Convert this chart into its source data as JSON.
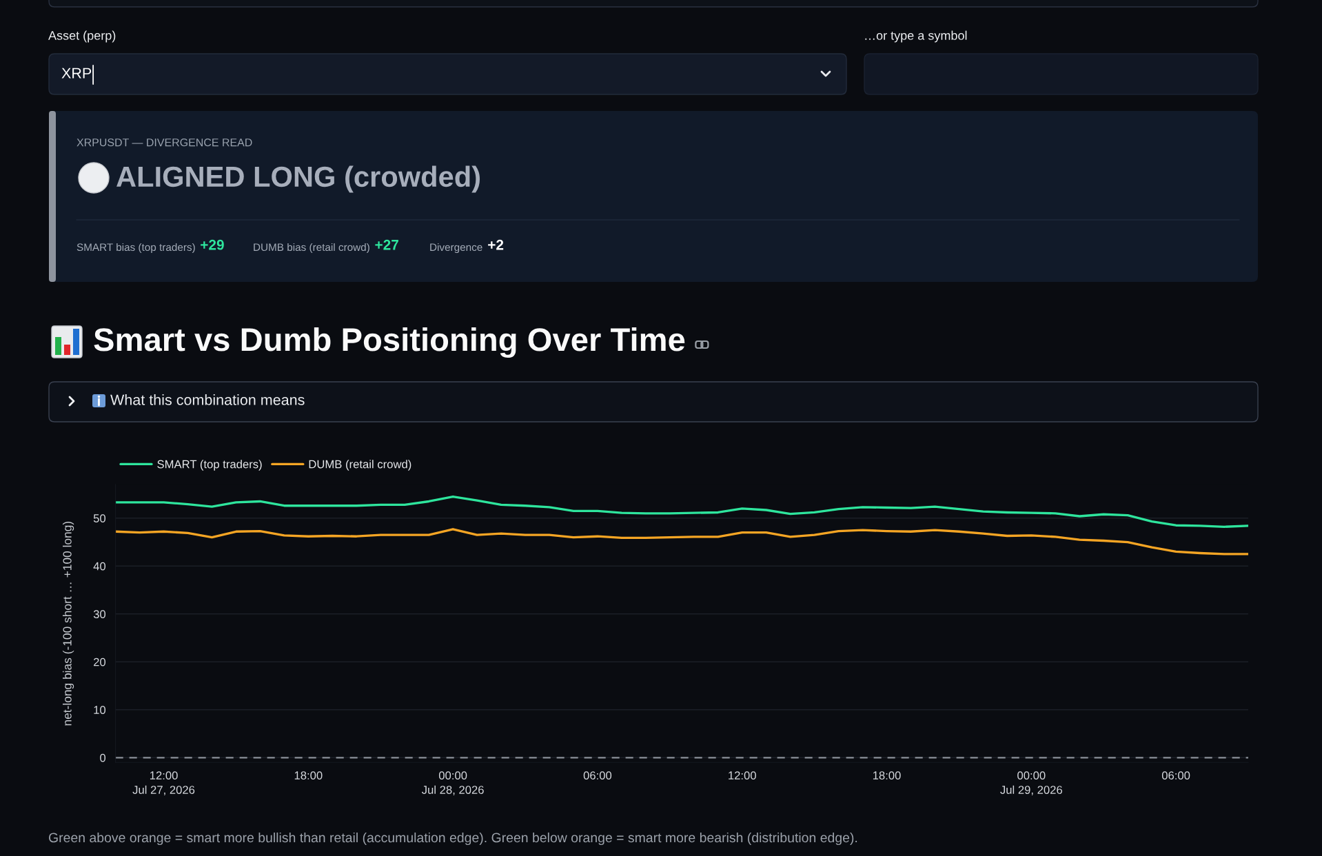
{
  "chart_data": [
    {
      "type": "other",
      "annotations": [
        "Asset (perp)",
        "XRP",
        "…or type a symbol"
      ]
    },
    {
      "type": "other",
      "subtitle": "XRPUSDT — DIVERGENCE READ",
      "title": "ALIGNED LONG (crowded)",
      "annotations": [
        "SMART bias (top traders)",
        "+29",
        "DUMB bias (retail crowd)",
        "+27",
        "Divergence",
        "+2"
      ]
    },
    {
      "type": "line",
      "title": "Smart vs Dumb Positioning Over Time",
      "subtitle": "What this combination means",
      "ylabel": "net-long bias (-100 short … +100 long)",
      "x": [
        "2026-07-27T10:00",
        "2026-07-27T11:00",
        "2026-07-27T12:00",
        "2026-07-27T13:00",
        "2026-07-27T14:00",
        "2026-07-27T15:00",
        "2026-07-27T16:00",
        "2026-07-27T17:00",
        "2026-07-27T18:00",
        "2026-07-27T19:00",
        "2026-07-27T20:00",
        "2026-07-27T21:00",
        "2026-07-27T22:00",
        "2026-07-27T23:00",
        "2026-07-28T00:00",
        "2026-07-28T01:00",
        "2026-07-28T02:00",
        "2026-07-28T03:00",
        "2026-07-28T04:00",
        "2026-07-28T05:00",
        "2026-07-28T06:00",
        "2026-07-28T07:00",
        "2026-07-28T08:00",
        "2026-07-28T09:00",
        "2026-07-28T10:00",
        "2026-07-28T11:00",
        "2026-07-28T12:00",
        "2026-07-28T13:00",
        "2026-07-28T14:00",
        "2026-07-28T15:00",
        "2026-07-28T16:00",
        "2026-07-28T17:00",
        "2026-07-28T18:00",
        "2026-07-28T19:00",
        "2026-07-28T20:00",
        "2026-07-28T21:00",
        "2026-07-28T22:00",
        "2026-07-28T23:00",
        "2026-07-29T00:00",
        "2026-07-29T01:00",
        "2026-07-29T02:00",
        "2026-07-29T03:00",
        "2026-07-29T04:00",
        "2026-07-29T05:00",
        "2026-07-29T06:00",
        "2026-07-29T07:00",
        "2026-07-29T08:00",
        "2026-07-29T09:00"
      ],
      "series": [
        {
          "name": "SMART (top traders)",
          "color": "#2ee59d",
          "values": [
            53.3,
            53.3,
            53.3,
            52.9,
            52.4,
            53.3,
            53.5,
            52.6,
            52.6,
            52.6,
            52.6,
            52.8,
            52.8,
            53.5,
            54.5,
            53.7,
            52.8,
            52.6,
            52.3,
            51.5,
            51.5,
            51.1,
            51.0,
            51.0,
            51.1,
            51.2,
            52.0,
            51.7,
            50.9,
            51.2,
            51.9,
            52.3,
            52.2,
            52.1,
            52.4,
            51.9,
            51.4,
            51.2,
            51.1,
            51.0,
            50.4,
            50.8,
            50.6,
            49.3,
            48.5,
            48.4,
            48.2,
            48.4
          ]
        },
        {
          "name": "DUMB (retail crowd)",
          "color": "#f5a524",
          "values": [
            47.2,
            47.0,
            47.2,
            46.9,
            46.0,
            47.2,
            47.3,
            46.4,
            46.2,
            46.3,
            46.2,
            46.5,
            46.5,
            46.5,
            47.7,
            46.5,
            46.8,
            46.5,
            46.5,
            46.0,
            46.2,
            45.9,
            45.9,
            46.0,
            46.1,
            46.1,
            47.0,
            47.0,
            46.1,
            46.5,
            47.3,
            47.5,
            47.3,
            47.2,
            47.5,
            47.2,
            46.8,
            46.3,
            46.4,
            46.1,
            45.5,
            45.3,
            45.0,
            43.9,
            43.0,
            42.7,
            42.5,
            42.5
          ]
        }
      ],
      "xlim": [
        "2026-07-27T10:00",
        "2026-07-29T09:00"
      ],
      "xticks": [
        {
          "value": "2026-07-27T12:00",
          "label": "12:00\nJul 27, 2026"
        },
        {
          "value": "2026-07-27T18:00",
          "label": "18:00"
        },
        {
          "value": "2026-07-28T00:00",
          "label": "00:00\nJul 28, 2026"
        },
        {
          "value": "2026-07-28T06:00",
          "label": "06:00"
        },
        {
          "value": "2026-07-28T12:00",
          "label": "12:00"
        },
        {
          "value": "2026-07-28T18:00",
          "label": "18:00"
        },
        {
          "value": "2026-07-29T00:00",
          "label": "00:00\nJul 29, 2026"
        },
        {
          "value": "2026-07-29T06:00",
          "label": "06:00"
        }
      ],
      "ylim": [
        -1,
        57
      ],
      "yticks": [
        0,
        10,
        20,
        30,
        40,
        50
      ],
      "grid": "y",
      "legend": "top left",
      "ref_lines": [
        {
          "axis": "y",
          "value": 0,
          "color": "#8a8f98",
          "line_style": "dashed"
        }
      ],
      "annotations": [
        "Green above orange = smart more bullish than retail (accumulation edge). Green below orange = smart more bearish (distribution edge)."
      ]
    }
  ]
}
